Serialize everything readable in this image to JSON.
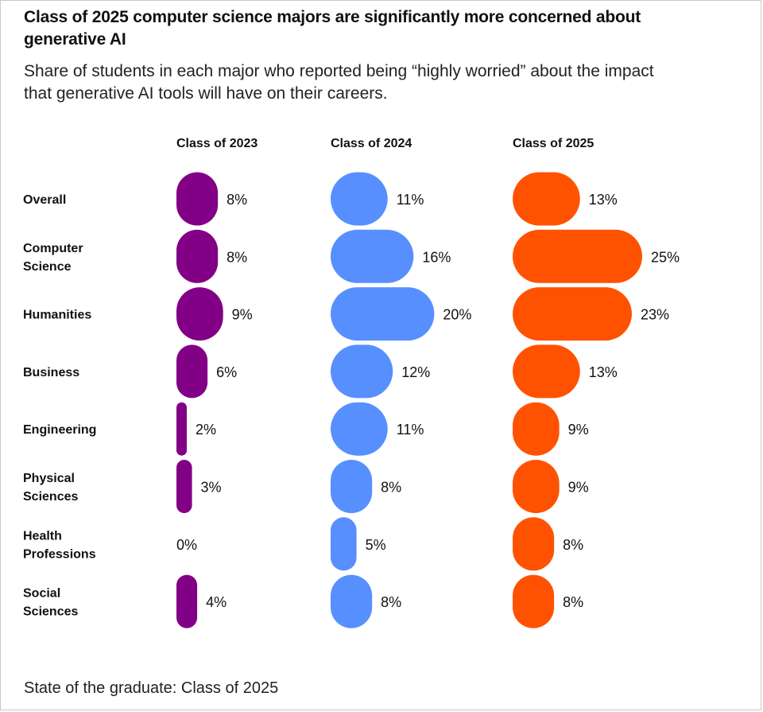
{
  "title": "Class of 2025 computer science majors are significantly more concerned about generative AI",
  "subtitle": "Share of students in each major who reported being “highly worried” about the impact that generative AI tools will have on their careers.",
  "footer": "State of the graduate: Class of 2025",
  "chart_data": {
    "type": "bar",
    "orientation": "horizontal",
    "style": "pill bars in small multiples, one panel per class year",
    "value_unit": "%",
    "categories": [
      [
        "Overall"
      ],
      [
        "Computer",
        "Science"
      ],
      [
        "Humanities"
      ],
      [
        "Business"
      ],
      [
        "Engineering"
      ],
      [
        "Physical",
        "Sciences"
      ],
      [
        "Health",
        "Professions"
      ],
      [
        "Social",
        "Sciences"
      ]
    ],
    "series": [
      {
        "name": "Class of 2023",
        "color": "#820085",
        "values": [
          8,
          8,
          9,
          6,
          2,
          3,
          0,
          4
        ],
        "labels": [
          "8%",
          "8%",
          "9%",
          "6%",
          "2%",
          "3%",
          "0%",
          "4%"
        ]
      },
      {
        "name": "Class of 2024",
        "color": "#578ffe",
        "values": [
          11,
          16,
          20,
          12,
          11,
          8,
          5,
          8
        ],
        "labels": [
          "11%",
          "16%",
          "20%",
          "12%",
          "11%",
          "8%",
          "5%",
          "8%"
        ]
      },
      {
        "name": "Class of 2025",
        "color": "#ff5200",
        "values": [
          13,
          25,
          23,
          13,
          9,
          9,
          8,
          8
        ],
        "labels": [
          "13%",
          "25%",
          "23%",
          "13%",
          "9%",
          "9%",
          "8%",
          "8%"
        ]
      }
    ],
    "grid": false,
    "legend": "none (series named by column headers)"
  }
}
